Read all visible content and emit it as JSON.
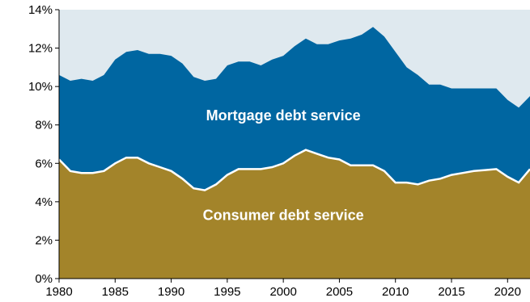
{
  "chart_data": {
    "type": "area",
    "stacked": true,
    "title": "",
    "xlabel": "",
    "ylabel": "",
    "xlim": [
      1980,
      2022
    ],
    "ylim": [
      0,
      14
    ],
    "x_ticks": [
      1980,
      1985,
      1990,
      1995,
      2000,
      2005,
      2010,
      2015,
      2020
    ],
    "y_ticks": [
      "0%",
      "2%",
      "4%",
      "6%",
      "8%",
      "10%",
      "12%",
      "14%"
    ],
    "grid": false,
    "legend": "none (series labeled directly inside areas)",
    "colors": {
      "plot_background": "#dfe9ef",
      "consumer": "#a3842a",
      "mortgage": "#0066a1",
      "separator": "#ffffff"
    },
    "series": [
      {
        "name": "Consumer debt service",
        "x": [
          1980,
          1981,
          1982,
          1983,
          1984,
          1985,
          1986,
          1987,
          1988,
          1989,
          1990,
          1991,
          1992,
          1993,
          1994,
          1995,
          1996,
          1997,
          1998,
          1999,
          2000,
          2001,
          2002,
          2003,
          2004,
          2005,
          2006,
          2007,
          2008,
          2009,
          2010,
          2011,
          2012,
          2013,
          2014,
          2015,
          2016,
          2017,
          2018,
          2019,
          2020,
          2021,
          2022
        ],
        "values": [
          6.2,
          5.6,
          5.5,
          5.5,
          5.6,
          6.0,
          6.3,
          6.3,
          6.0,
          5.8,
          5.6,
          5.2,
          4.7,
          4.6,
          4.9,
          5.4,
          5.7,
          5.7,
          5.7,
          5.8,
          6.0,
          6.4,
          6.7,
          6.5,
          6.3,
          6.2,
          5.9,
          5.9,
          5.9,
          5.6,
          5.0,
          5.0,
          4.9,
          5.1,
          5.2,
          5.4,
          5.5,
          5.6,
          5.65,
          5.7,
          5.3,
          5.0,
          5.7
        ]
      },
      {
        "name": "Mortgage debt service",
        "x": [
          1980,
          1981,
          1982,
          1983,
          1984,
          1985,
          1986,
          1987,
          1988,
          1989,
          1990,
          1991,
          1992,
          1993,
          1994,
          1995,
          1996,
          1997,
          1998,
          1999,
          2000,
          2001,
          2002,
          2003,
          2004,
          2005,
          2006,
          2007,
          2008,
          2009,
          2010,
          2011,
          2012,
          2013,
          2014,
          2015,
          2016,
          2017,
          2018,
          2019,
          2020,
          2021,
          2022
        ],
        "values": [
          4.4,
          4.7,
          4.9,
          4.8,
          5.0,
          5.4,
          5.5,
          5.6,
          5.7,
          5.9,
          6.0,
          6.0,
          5.8,
          5.7,
          5.5,
          5.7,
          5.6,
          5.6,
          5.4,
          5.6,
          5.6,
          5.7,
          5.8,
          5.7,
          5.9,
          6.2,
          6.6,
          6.8,
          7.2,
          7.0,
          6.8,
          6.0,
          5.7,
          5.0,
          4.9,
          4.5,
          4.4,
          4.3,
          4.25,
          4.2,
          4.0,
          3.9,
          3.8
        ]
      }
    ],
    "annotations": [
      "Mortgage debt service",
      "Consumer debt service"
    ]
  }
}
